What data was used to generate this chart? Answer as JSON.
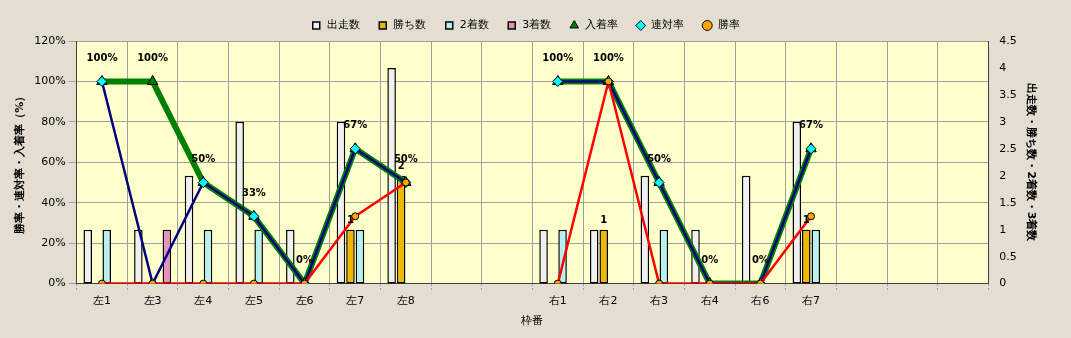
{
  "chart_data": {
    "type": "bar",
    "xlabel": "枠番",
    "ylabel": "勝率・連対率・入着率（%）",
    "y2label": "出走数・勝ち数・2着数・3着数",
    "categories": [
      "左1",
      "左3",
      "左4",
      "左5",
      "左6",
      "左7",
      "左8",
      null,
      null,
      "右1",
      "右2",
      "右3",
      "右4",
      "右6",
      "右7",
      null,
      null,
      null
    ],
    "series": [
      {
        "name": "出走数",
        "axis": "y2",
        "color": "#f0f0f0",
        "values": [
          1,
          1,
          2,
          3,
          1,
          3,
          4,
          null,
          null,
          1,
          1,
          2,
          1,
          2,
          3,
          null,
          null,
          null
        ]
      },
      {
        "name": "勝ち数",
        "axis": "y2",
        "color": "#f0b800",
        "values": [
          null,
          null,
          null,
          null,
          null,
          1,
          2,
          null,
          null,
          null,
          1,
          null,
          null,
          null,
          1,
          null,
          null,
          null
        ],
        "value_labels": [
          null,
          null,
          null,
          null,
          null,
          "1",
          "2",
          null,
          null,
          null,
          "1",
          null,
          null,
          null,
          "1",
          null,
          null,
          null
        ]
      },
      {
        "name": "2着数",
        "axis": "y2",
        "color": "#b8f0f0",
        "values": [
          1,
          null,
          1,
          1,
          null,
          1,
          null,
          null,
          null,
          1,
          null,
          1,
          null,
          null,
          1,
          null,
          null,
          null
        ]
      },
      {
        "name": "3着数",
        "axis": "y2",
        "color": "#e890c0",
        "values": [
          null,
          1,
          null,
          null,
          null,
          null,
          null,
          null,
          null,
          null,
          null,
          null,
          null,
          null,
          null,
          null,
          null,
          null
        ]
      },
      {
        "name": "入着率",
        "type": "line",
        "axis": "y",
        "color": "#008000",
        "marker": "triangle",
        "values": [
          100,
          100,
          50,
          33.3,
          0,
          66.7,
          50,
          null,
          null,
          100,
          100,
          50,
          0,
          0,
          66.7,
          null,
          null,
          null
        ],
        "value_labels": [
          "100%",
          "100%",
          "50%",
          "33%",
          "0%",
          "67%",
          "50%",
          null,
          null,
          "100%",
          "100%",
          "50%",
          "0%",
          "0%",
          "67%",
          null,
          null,
          null
        ]
      },
      {
        "name": "連対率",
        "type": "line",
        "axis": "y",
        "color": "#000080",
        "marker": "diamond",
        "values": [
          100,
          0,
          50,
          33.3,
          0,
          66.7,
          50,
          null,
          null,
          100,
          100,
          50,
          0,
          0,
          66.7,
          null,
          null,
          null
        ]
      },
      {
        "name": "勝率",
        "type": "line",
        "axis": "y",
        "color": "#ff0000",
        "marker": "circle",
        "values": [
          0,
          0,
          0,
          0,
          0,
          33.3,
          50,
          null,
          null,
          0,
          100,
          0,
          0,
          0,
          33.3,
          null,
          null,
          null
        ]
      }
    ],
    "ylim": [
      0,
      120
    ],
    "yticks": [
      {
        "value": 0,
        "label": "0%"
      },
      {
        "value": 20,
        "label": "20%"
      },
      {
        "value": 40,
        "label": "40%"
      },
      {
        "value": 60,
        "label": "60%"
      },
      {
        "value": 80,
        "label": "80%"
      },
      {
        "value": 100,
        "label": "100%"
      },
      {
        "value": 120,
        "label": "120%"
      }
    ],
    "y2lim": [
      0,
      4.5
    ],
    "y2ticks": [
      0,
      0.5,
      1,
      1.5,
      2,
      2.5,
      3,
      3.5,
      4,
      4.5
    ],
    "grid": true,
    "legend": "top",
    "line_style": "solid"
  }
}
